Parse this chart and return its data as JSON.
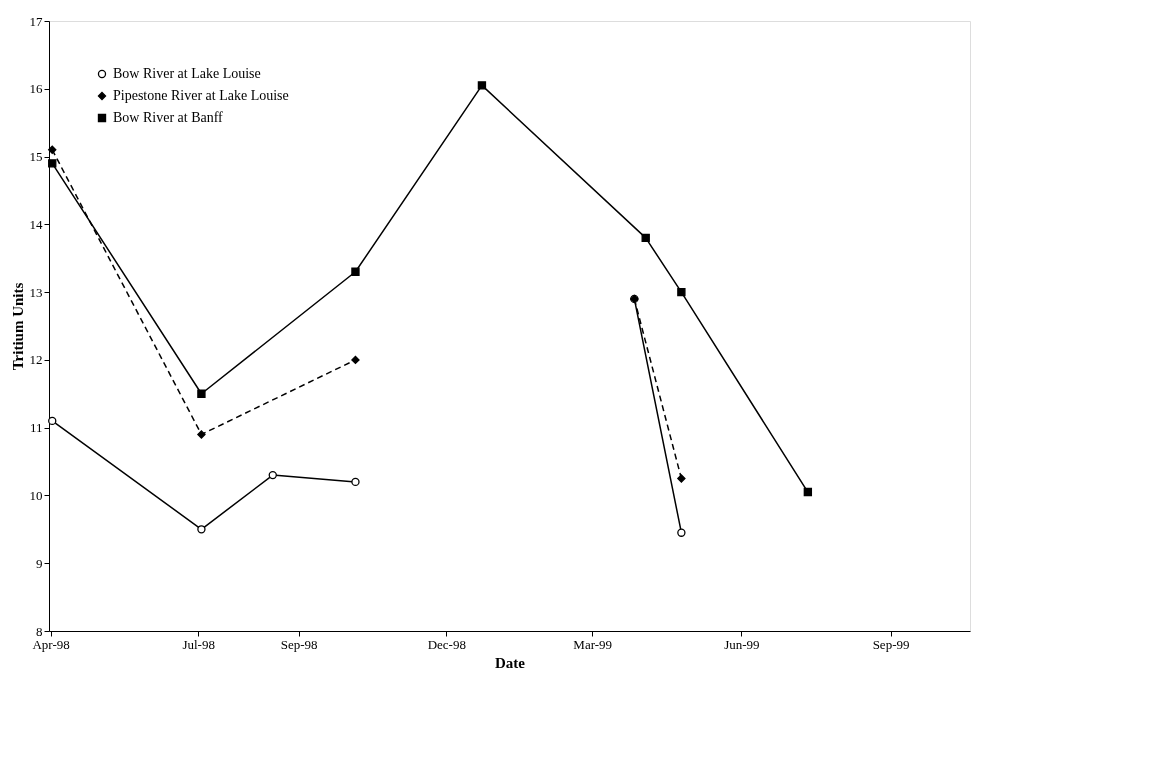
{
  "chart_data": {
    "type": "line",
    "xlabel": "Date",
    "ylabel": "Tritium Units",
    "xlim": [
      "1998-03-31",
      "1999-10-20"
    ],
    "ylim": [
      8,
      17
    ],
    "xticks": [
      {
        "value": "1998-04-01",
        "label": "Apr-98"
      },
      {
        "value": "1998-07-01",
        "label": "Jul-98"
      },
      {
        "value": "1998-09-01",
        "label": "Sep-98"
      },
      {
        "value": "1998-12-01",
        "label": "Dec-98"
      },
      {
        "value": "1999-03-01",
        "label": "Mar-99"
      },
      {
        "value": "1999-06-01",
        "label": "Jun-99"
      },
      {
        "value": "1999-09-01",
        "label": "Sep-99"
      }
    ],
    "yticks": [
      8,
      9,
      10,
      11,
      12,
      13,
      14,
      15,
      16,
      17
    ],
    "grid": false,
    "legend": "top left",
    "series": [
      {
        "name": "Bow River at Lake Louise",
        "color": "#000000",
        "marker": "circle",
        "line_style": "solid",
        "x": [
          "1998-04-02",
          "1998-07-03",
          "1998-08-16",
          "1998-10-06",
          "1998-12-23",
          "1999-03-27",
          "1999-04-25"
        ],
        "values": [
          11.1,
          9.5,
          10.3,
          10.2,
          null,
          12.9,
          9.45
        ]
      },
      {
        "name": "Pipestone River at Lake Louise",
        "color": "#000000",
        "marker": "diamond",
        "line_style": "dashed",
        "x": [
          "1998-04-02",
          "1998-07-03",
          "1998-10-06",
          "1998-12-23",
          "1999-03-27",
          "1999-04-25"
        ],
        "values": [
          15.1,
          10.9,
          12.0,
          null,
          12.9,
          10.25
        ]
      },
      {
        "name": "Bow River at Banff",
        "color": "#000000",
        "marker": "square",
        "line_style": "solid",
        "x": [
          "1998-04-02",
          "1998-07-03",
          "1998-10-06",
          "1998-12-23",
          "1999-04-03",
          "1999-04-25",
          "1999-07-12"
        ],
        "values": [
          14.9,
          11.5,
          13.3,
          16.05,
          13.8,
          13.0,
          10.05
        ]
      }
    ]
  }
}
